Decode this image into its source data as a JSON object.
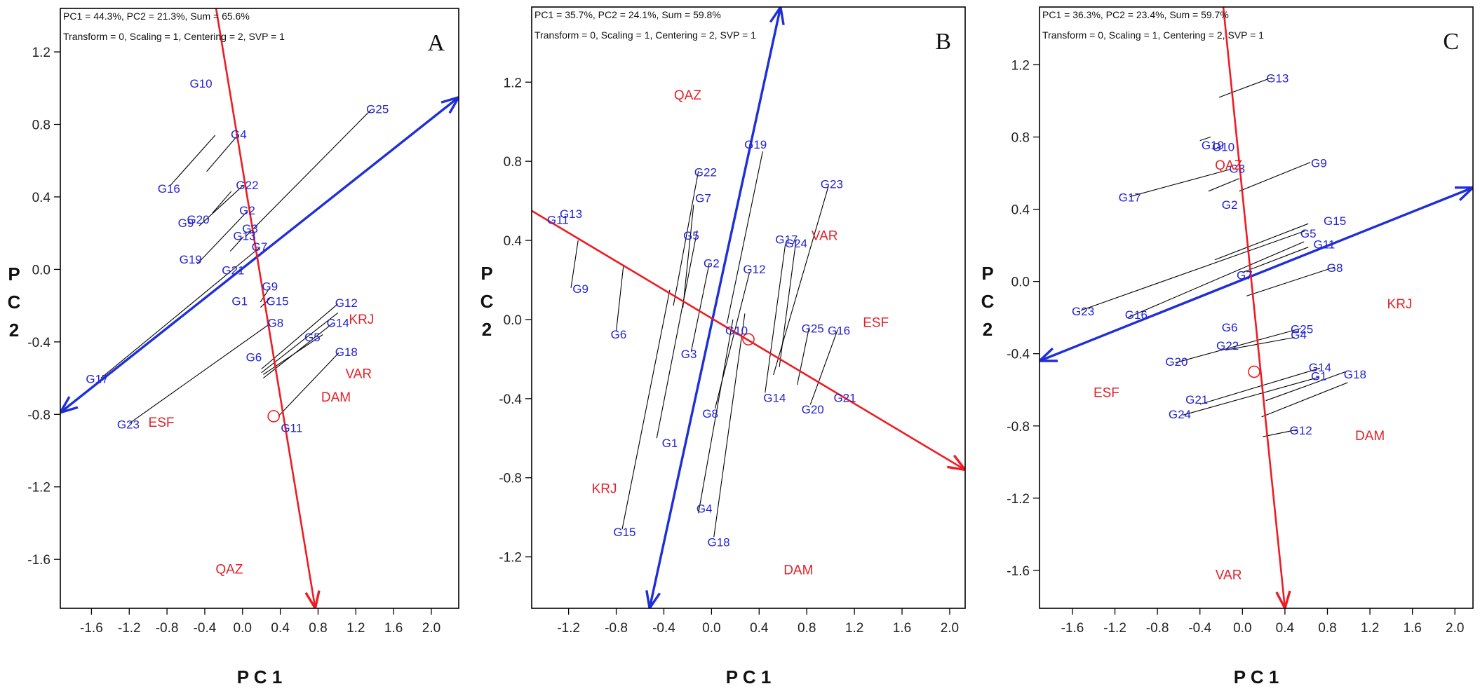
{
  "colors": {
    "genotype": "#2323d6",
    "environment": "#e0232a",
    "axis_blue": "#1f2fd8",
    "axis_red": "#ee1c22",
    "frame": "#000000"
  },
  "chart_data": [
    {
      "type": "scatter",
      "panel_label": "A",
      "header_line1": "PC1 = 44.3%, PC2 = 21.3%, Sum = 65.6%",
      "header_line2": "Transform = 0, Scaling = 1, Centering = 2, SVP = 1",
      "xlabel": "P C 1",
      "ylabel": "P C 2",
      "xlim": [
        -1.93,
        2.29
      ],
      "ylim": [
        -1.87,
        1.44
      ],
      "xticks": [
        -1.6,
        -1.2,
        -0.8,
        -0.4,
        0.0,
        0.4,
        0.8,
        1.2,
        1.6,
        2.0
      ],
      "xtick_labels": [
        "-1.6",
        "-1.2",
        "-0.8",
        "-0.4",
        "0.0",
        "0.4",
        "0.8",
        "1.2",
        "1.6",
        "2.0"
      ],
      "yticks": [
        1.2,
        0.8,
        0.4,
        0.0,
        -0.4,
        -0.8,
        -1.2,
        -1.6
      ],
      "ytick_labels": [
        "1.2",
        "0.8",
        "0.4",
        "0.0",
        "-0.4",
        "-0.8",
        "-1.2",
        "-1.6"
      ],
      "blue_axis": [
        [
          -1.93,
          -0.79
        ],
        [
          2.29,
          0.95
        ]
      ],
      "red_axis": [
        [
          -0.28,
          1.44
        ],
        [
          0.77,
          -1.87
        ]
      ],
      "circle": [
        0.33,
        -0.81
      ],
      "genotypes": [
        {
          "label": "G10",
          "x": -0.44,
          "y": 1.02
        },
        {
          "label": "G4",
          "x": -0.04,
          "y": 0.74
        },
        {
          "label": "G25",
          "x": 1.43,
          "y": 0.88
        },
        {
          "label": "G16",
          "x": -0.78,
          "y": 0.44
        },
        {
          "label": "G22",
          "x": 0.05,
          "y": 0.46
        },
        {
          "label": "G20",
          "x": -0.47,
          "y": 0.27
        },
        {
          "label": "G9",
          "x": -0.6,
          "y": 0.25
        },
        {
          "label": "G2",
          "x": 0.05,
          "y": 0.32
        },
        {
          "label": "G3",
          "x": 0.08,
          "y": 0.22
        },
        {
          "label": "G13",
          "x": 0.02,
          "y": 0.18
        },
        {
          "label": "G19",
          "x": -0.55,
          "y": 0.05
        },
        {
          "label": "G7",
          "x": 0.18,
          "y": 0.12
        },
        {
          "label": "G21",
          "x": -0.1,
          "y": -0.01
        },
        {
          "label": "G9",
          "x": 0.29,
          "y": -0.1
        },
        {
          "label": "G1",
          "x": -0.03,
          "y": -0.18
        },
        {
          "label": "G15",
          "x": 0.37,
          "y": -0.18
        },
        {
          "label": "G12",
          "x": 1.1,
          "y": -0.19
        },
        {
          "label": "G14",
          "x": 1.01,
          "y": -0.3
        },
        {
          "label": "G8",
          "x": 0.35,
          "y": -0.3
        },
        {
          "label": "G5",
          "x": 0.74,
          "y": -0.38
        },
        {
          "label": "G6",
          "x": 0.12,
          "y": -0.49
        },
        {
          "label": "G18",
          "x": 1.1,
          "y": -0.46
        },
        {
          "label": "G17",
          "x": -1.54,
          "y": -0.61
        },
        {
          "label": "G23",
          "x": -1.21,
          "y": -0.86
        },
        {
          "label": "G11",
          "x": 0.52,
          "y": -0.88
        }
      ],
      "environments": [
        {
          "label": "QAZ",
          "x": -0.14,
          "y": -1.66
        },
        {
          "label": "KRJ",
          "x": 1.26,
          "y": -0.28
        },
        {
          "label": "VAR",
          "x": 1.23,
          "y": -0.58
        },
        {
          "label": "DAM",
          "x": 0.99,
          "y": -0.71
        },
        {
          "label": "ESF",
          "x": -0.86,
          "y": -0.85
        }
      ],
      "projection_lines": [
        [
          [
            1.36,
            0.88
          ],
          [
            0.03,
            0.18
          ]
        ],
        [
          [
            -0.05,
            0.74
          ],
          [
            -0.38,
            0.54
          ]
        ],
        [
          [
            -0.77,
            0.46
          ],
          [
            -0.29,
            0.74
          ]
        ],
        [
          [
            0.0,
            0.46
          ],
          [
            -0.46,
            0.24
          ]
        ],
        [
          [
            -0.12,
            0.43
          ],
          [
            -0.32,
            0.31
          ]
        ],
        [
          [
            0.05,
            0.32
          ],
          [
            -0.48,
            0.03
          ]
        ],
        [
          [
            0.18,
            0.12
          ],
          [
            -1.5,
            -0.6
          ]
        ],
        [
          [
            0.01,
            0.18
          ],
          [
            -0.13,
            0.1
          ]
        ],
        [
          [
            0.29,
            -0.1
          ],
          [
            0.19,
            -0.18
          ]
        ],
        [
          [
            0.29,
            -0.16
          ],
          [
            0.19,
            -0.21
          ]
        ],
        [
          [
            0.29,
            -0.3
          ],
          [
            -1.2,
            -0.85
          ]
        ],
        [
          [
            1.01,
            -0.19
          ],
          [
            0.2,
            -0.55
          ]
        ],
        [
          [
            1.01,
            -0.24
          ],
          [
            0.2,
            -0.57
          ]
        ],
        [
          [
            0.95,
            -0.3
          ],
          [
            0.22,
            -0.6
          ]
        ],
        [
          [
            0.85,
            -0.36
          ],
          [
            0.22,
            -0.58
          ]
        ],
        [
          [
            1.02,
            -0.46
          ],
          [
            0.38,
            -0.81
          ]
        ]
      ]
    },
    {
      "type": "scatter",
      "panel_label": "B",
      "header_line1": "PC1 = 35.7%, PC2 = 24.1%, Sum = 59.8%",
      "header_line2": "Transform = 0, Scaling = 1, Centering = 2, SVP = 1",
      "xlabel": "P C 1",
      "ylabel": "P C 2",
      "xlim": [
        -1.51,
        2.13
      ],
      "ylim": [
        -1.46,
        1.58
      ],
      "xticks": [
        -1.2,
        -0.8,
        -0.4,
        0.0,
        0.4,
        0.8,
        1.2,
        1.6,
        2.0
      ],
      "xtick_labels": [
        "-1.2",
        "-0.8",
        "-0.4",
        "0.0",
        "0.4",
        "0.8",
        "1.2",
        "1.6",
        "2.0"
      ],
      "yticks": [
        1.2,
        0.8,
        0.4,
        0.0,
        -0.4,
        -0.8,
        -1.2
      ],
      "ytick_labels": [
        "1.2",
        "0.8",
        "0.4",
        "0.0",
        "-0.4",
        "-0.8",
        "-1.2"
      ],
      "blue_axis": [
        [
          -0.52,
          -1.46
        ],
        [
          0.58,
          1.58
        ]
      ],
      "red_axis": [
        [
          -1.51,
          0.55
        ],
        [
          2.13,
          -0.76
        ]
      ],
      "circle": [
        0.31,
        -0.1
      ],
      "genotypes": [
        {
          "label": "G11",
          "x": -1.29,
          "y": 0.5
        },
        {
          "label": "G13",
          "x": -1.18,
          "y": 0.53
        },
        {
          "label": "G9",
          "x": -1.1,
          "y": 0.15
        },
        {
          "label": "G6",
          "x": -0.78,
          "y": -0.08
        },
        {
          "label": "G19",
          "x": 0.37,
          "y": 0.88
        },
        {
          "label": "G22",
          "x": -0.05,
          "y": 0.74
        },
        {
          "label": "G7",
          "x": -0.07,
          "y": 0.61
        },
        {
          "label": "G5",
          "x": -0.17,
          "y": 0.42
        },
        {
          "label": "G2",
          "x": 0.0,
          "y": 0.28
        },
        {
          "label": "G12",
          "x": 0.36,
          "y": 0.25
        },
        {
          "label": "G17",
          "x": 0.63,
          "y": 0.4
        },
        {
          "label": "G24",
          "x": 0.71,
          "y": 0.38
        },
        {
          "label": "G23",
          "x": 1.01,
          "y": 0.68
        },
        {
          "label": "G10",
          "x": 0.21,
          "y": -0.06
        },
        {
          "label": "G3",
          "x": -0.19,
          "y": -0.18
        },
        {
          "label": "G25",
          "x": 0.85,
          "y": -0.05
        },
        {
          "label": "G16",
          "x": 1.07,
          "y": -0.06
        },
        {
          "label": "G14",
          "x": 0.53,
          "y": -0.4
        },
        {
          "label": "G20",
          "x": 0.85,
          "y": -0.46
        },
        {
          "label": "G21",
          "x": 1.12,
          "y": -0.4
        },
        {
          "label": "G8",
          "x": -0.01,
          "y": -0.48
        },
        {
          "label": "G1",
          "x": -0.35,
          "y": -0.63
        },
        {
          "label": "G4",
          "x": -0.06,
          "y": -0.96
        },
        {
          "label": "G18",
          "x": 0.06,
          "y": -1.13
        },
        {
          "label": "G15",
          "x": -0.73,
          "y": -1.08
        }
      ],
      "environments": [
        {
          "label": "QAZ",
          "x": -0.2,
          "y": 1.13
        },
        {
          "label": "VAR",
          "x": 0.95,
          "y": 0.42
        },
        {
          "label": "ESF",
          "x": 1.38,
          "y": -0.02
        },
        {
          "label": "KRJ",
          "x": -0.9,
          "y": -0.86
        },
        {
          "label": "DAM",
          "x": 0.73,
          "y": -1.27
        }
      ],
      "projection_lines": [
        [
          [
            -1.12,
            0.4
          ],
          [
            -1.18,
            0.16
          ]
        ],
        [
          [
            -0.74,
            0.27
          ],
          [
            -0.8,
            -0.06
          ]
        ],
        [
          [
            -0.11,
            0.75
          ],
          [
            -0.32,
            0.07
          ]
        ],
        [
          [
            -0.15,
            0.58
          ],
          [
            -0.24,
            0.06
          ]
        ],
        [
          [
            -0.12,
            0.45
          ],
          [
            -0.46,
            -0.6
          ]
        ],
        [
          [
            -0.02,
            0.28
          ],
          [
            -0.17,
            -0.16
          ]
        ],
        [
          [
            0.43,
            0.85
          ],
          [
            0.13,
            -0.02
          ]
        ],
        [
          [
            0.32,
            0.24
          ],
          [
            0.03,
            -0.45
          ]
        ],
        [
          [
            0.62,
            0.38
          ],
          [
            0.45,
            -0.37
          ]
        ],
        [
          [
            0.71,
            0.4
          ],
          [
            0.57,
            -0.24
          ]
        ],
        [
          [
            0.98,
            0.67
          ],
          [
            0.52,
            -0.28
          ]
        ],
        [
          [
            0.82,
            -0.04
          ],
          [
            0.72,
            -0.33
          ]
        ],
        [
          [
            1.06,
            -0.05
          ],
          [
            0.83,
            -0.43
          ]
        ],
        [
          [
            -0.35,
            0.15
          ],
          [
            -0.75,
            -1.06
          ]
        ],
        [
          [
            0.18,
            0.0
          ],
          [
            -0.11,
            -0.98
          ]
        ],
        [
          [
            0.28,
            0.03
          ],
          [
            0.02,
            -1.1
          ]
        ]
      ]
    },
    {
      "type": "scatter",
      "panel_label": "C",
      "header_line1": "PC1 = 36.3%, PC2 = 23.4%, Sum = 59.7%",
      "header_line2": "Transform = 0, Scaling = 1, Centering = 2, SVP = 1",
      "xlabel": "P C 1",
      "ylabel": "P C 2",
      "xlim": [
        -1.91,
        2.17
      ],
      "ylim": [
        -1.81,
        1.52
      ],
      "xticks": [
        -1.6,
        -1.2,
        -0.8,
        -0.4,
        0.0,
        0.4,
        0.8,
        1.2,
        1.6,
        2.0
      ],
      "xtick_labels": [
        "-1.6",
        "-1.2",
        "-0.8",
        "-0.4",
        "0.0",
        "0.4",
        "0.8",
        "1.2",
        "1.6",
        "2.0"
      ],
      "yticks": [
        1.2,
        0.8,
        0.4,
        0.0,
        -0.4,
        -0.8,
        -1.2,
        -1.6
      ],
      "ytick_labels": [
        "1.2",
        "0.8",
        "0.4",
        "0.0",
        "-0.4",
        "-0.8",
        "-1.2",
        "-1.6"
      ],
      "blue_axis": [
        [
          -1.91,
          -0.44
        ],
        [
          2.17,
          0.52
        ]
      ],
      "red_axis": [
        [
          -0.18,
          1.52
        ],
        [
          0.4,
          -1.81
        ]
      ],
      "circle": [
        0.11,
        -0.5
      ],
      "genotypes": [
        {
          "label": "G13",
          "x": 0.33,
          "y": 1.12
        },
        {
          "label": "G19",
          "x": -0.28,
          "y": 0.75
        },
        {
          "label": "G10",
          "x": -0.18,
          "y": 0.74
        },
        {
          "label": "G3",
          "x": -0.05,
          "y": 0.62
        },
        {
          "label": "G9",
          "x": 0.72,
          "y": 0.65
        },
        {
          "label": "G17",
          "x": -1.06,
          "y": 0.46
        },
        {
          "label": "G2",
          "x": -0.12,
          "y": 0.42
        },
        {
          "label": "G5",
          "x": 0.62,
          "y": 0.26
        },
        {
          "label": "G15",
          "x": 0.87,
          "y": 0.33
        },
        {
          "label": "G11",
          "x": 0.77,
          "y": 0.2
        },
        {
          "label": "G7",
          "x": 0.02,
          "y": 0.03
        },
        {
          "label": "G8",
          "x": 0.87,
          "y": 0.07
        },
        {
          "label": "G23",
          "x": -1.5,
          "y": -0.17
        },
        {
          "label": "G16",
          "x": -1.0,
          "y": -0.19
        },
        {
          "label": "G6",
          "x": -0.12,
          "y": -0.26
        },
        {
          "label": "G22",
          "x": -0.14,
          "y": -0.36
        },
        {
          "label": "G25",
          "x": 0.56,
          "y": -0.27
        },
        {
          "label": "G4",
          "x": 0.53,
          "y": -0.3
        },
        {
          "label": "G20",
          "x": -0.62,
          "y": -0.45
        },
        {
          "label": "G14",
          "x": 0.73,
          "y": -0.48
        },
        {
          "label": "G1",
          "x": 0.72,
          "y": -0.53
        },
        {
          "label": "G18",
          "x": 1.06,
          "y": -0.52
        },
        {
          "label": "G21",
          "x": -0.43,
          "y": -0.66
        },
        {
          "label": "G24",
          "x": -0.59,
          "y": -0.74
        },
        {
          "label": "G12",
          "x": 0.55,
          "y": -0.83
        }
      ],
      "environments": [
        {
          "label": "QAZ",
          "x": -0.13,
          "y": 0.64
        },
        {
          "label": "KRJ",
          "x": 1.48,
          "y": -0.13
        },
        {
          "label": "ESF",
          "x": -1.28,
          "y": -0.62
        },
        {
          "label": "DAM",
          "x": 1.2,
          "y": -0.86
        },
        {
          "label": "VAR",
          "x": -0.13,
          "y": -1.63
        }
      ],
      "projection_lines": [
        [
          [
            0.28,
            1.13
          ],
          [
            -0.22,
            1.02
          ]
        ],
        [
          [
            -0.3,
            0.8
          ],
          [
            -0.4,
            0.78
          ]
        ],
        [
          [
            -0.12,
            0.62
          ],
          [
            -1.06,
            0.47
          ]
        ],
        [
          [
            -0.2,
            0.75
          ],
          [
            -0.27,
            0.73
          ]
        ],
        [
          [
            -0.03,
            0.57
          ],
          [
            -0.32,
            0.5
          ]
        ],
        [
          [
            0.64,
            0.66
          ],
          [
            -0.03,
            0.5
          ]
        ],
        [
          [
            0.62,
            0.32
          ],
          [
            -0.26,
            0.12
          ]
        ],
        [
          [
            0.59,
            0.28
          ],
          [
            -1.52,
            -0.16
          ]
        ],
        [
          [
            0.58,
            0.22
          ],
          [
            -1.08,
            -0.2
          ]
        ],
        [
          [
            0.62,
            0.19
          ],
          [
            0.0,
            0.05
          ]
        ],
        [
          [
            0.87,
            0.08
          ],
          [
            0.04,
            -0.08
          ]
        ],
        [
          [
            0.55,
            -0.26
          ],
          [
            -0.63,
            -0.45
          ]
        ],
        [
          [
            0.49,
            -0.31
          ],
          [
            -0.16,
            -0.38
          ]
        ],
        [
          [
            0.73,
            -0.48
          ],
          [
            -0.4,
            -0.68
          ]
        ],
        [
          [
            0.72,
            -0.53
          ],
          [
            -0.56,
            -0.74
          ]
        ],
        [
          [
            0.97,
            -0.5
          ],
          [
            0.22,
            -0.66
          ]
        ],
        [
          [
            0.99,
            -0.56
          ],
          [
            0.18,
            -0.75
          ]
        ],
        [
          [
            0.52,
            -0.82
          ],
          [
            0.19,
            -0.86
          ]
        ]
      ]
    }
  ]
}
